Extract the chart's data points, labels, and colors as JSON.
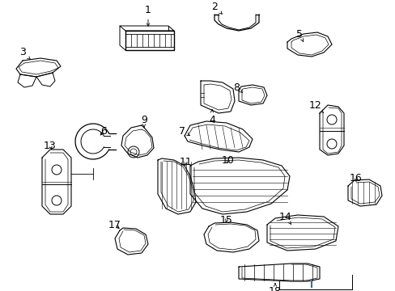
{
  "background_color": "#ffffff",
  "figure_width": 4.89,
  "figure_height": 3.6,
  "dpi": 100,
  "image_extent": [
    0,
    489,
    0,
    360
  ]
}
